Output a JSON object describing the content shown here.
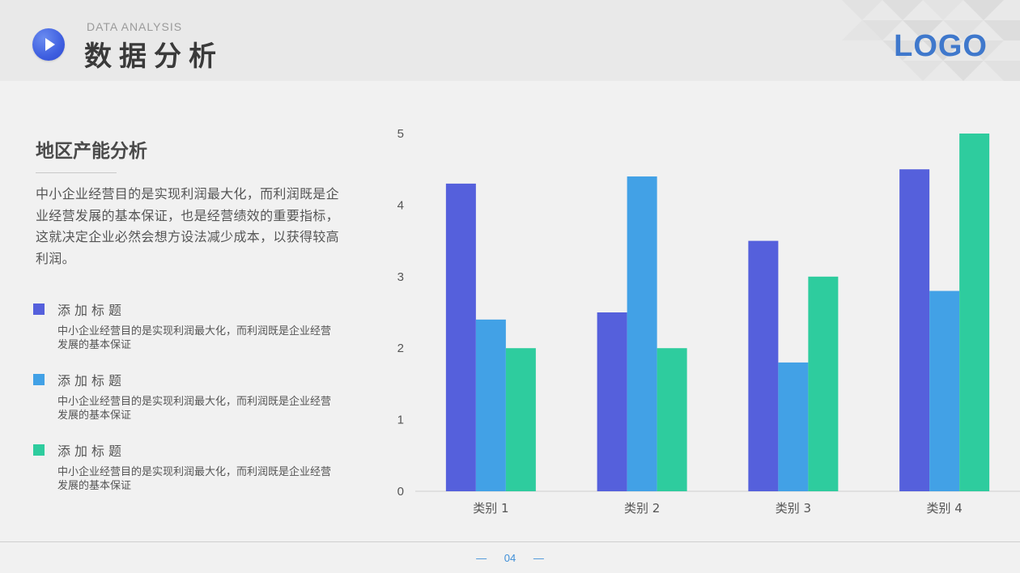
{
  "header": {
    "subtitle": "DATA ANALYSIS",
    "title": "数据分析",
    "logo": "LOGO",
    "play_icon": "play-circle-icon"
  },
  "main": {
    "heading": "地区产能分析",
    "intro": "中小企业经营目的是实现利润最大化，而利润既是企业经营发展的基本保证，也是经营绩效的重要指标，这就决定企业必然会想方设法减少成本，以获得较高利润。",
    "legend": [
      {
        "title": "添加标题",
        "desc": "中小企业经营目的是实现利润最大化，而利润既是企业经营发展的基本保证",
        "color": "#5560dc"
      },
      {
        "title": "添加标题",
        "desc": "中小企业经营目的是实现利润最大化，而利润既是企业经营发展的基本保证",
        "color": "#42a1e6"
      },
      {
        "title": "添加标题",
        "desc": "中小企业经营目的是实现利润最大化，而利润既是企业经营发展的基本保证",
        "color": "#2ecc9e"
      }
    ]
  },
  "chart_data": {
    "type": "bar",
    "categories": [
      "类别 1",
      "类别 2",
      "类别 3",
      "类别 4"
    ],
    "series": [
      {
        "values": [
          4.3,
          2.5,
          3.5,
          4.5
        ],
        "color": "#5560dc"
      },
      {
        "values": [
          2.4,
          4.4,
          1.8,
          2.8
        ],
        "color": "#42a1e6"
      },
      {
        "values": [
          2.0,
          2.0,
          3.0,
          5.0
        ],
        "color": "#2ecc9e"
      }
    ],
    "yticks": [
      "0",
      "1",
      "2",
      "3",
      "4",
      "5"
    ],
    "ylim": [
      0,
      5
    ],
    "grid": false,
    "legend": "none"
  },
  "footer": {
    "dash": "—",
    "page": "04"
  }
}
